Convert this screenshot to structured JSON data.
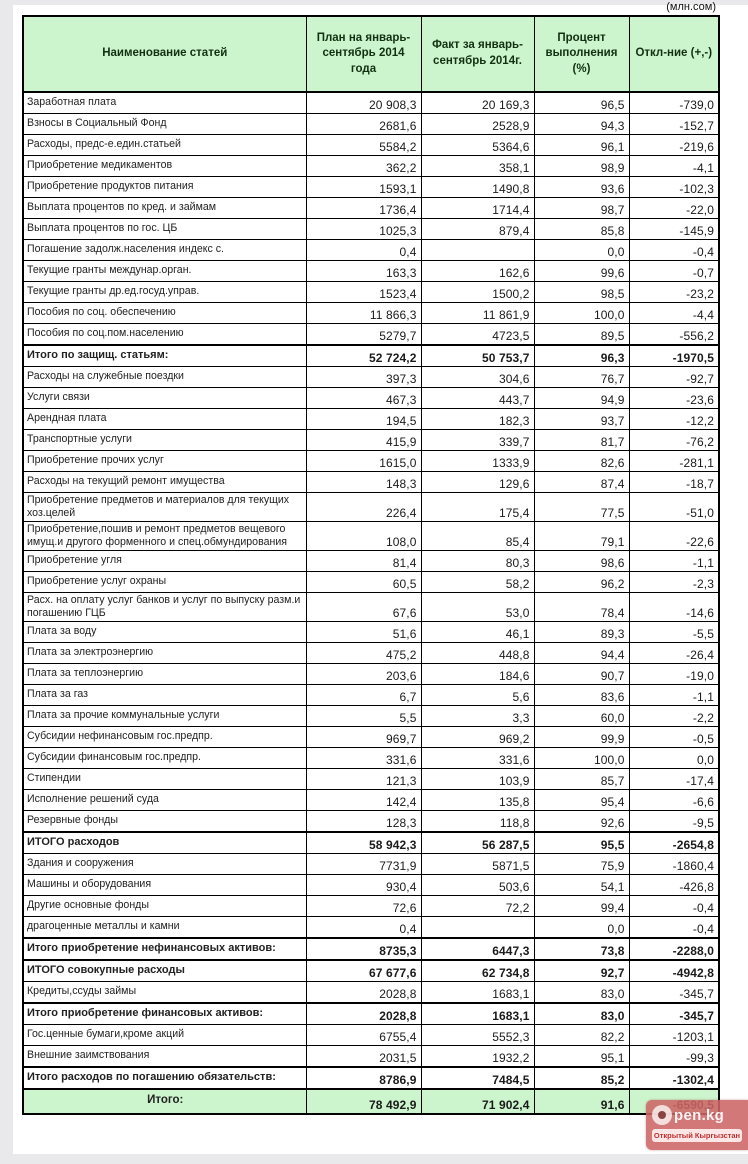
{
  "unit_note": "(млн.сом)",
  "table": {
    "headers": {
      "name": "Наименование статей",
      "plan": "План на январь-сентябрь 2014 года",
      "fact": "Факт за январь-сентябрь 2014г.",
      "percent": "Процент выполнения (%)",
      "deviation": "Откл-ние (+,-)"
    },
    "rows": [
      {
        "name": "Заработная плата",
        "plan": "20 908,3",
        "fact": "20 169,3",
        "percent": "96,5",
        "deviation": "-739,0",
        "type": "item"
      },
      {
        "name": "Взносы в Социальный Фонд",
        "plan": "2681,6",
        "fact": "2528,9",
        "percent": "94,3",
        "deviation": "-152,7",
        "type": "item"
      },
      {
        "name": "Расходы, предс-е.един.статьей",
        "plan": "5584,2",
        "fact": "5364,6",
        "percent": "96,1",
        "deviation": "-219,6",
        "type": "item"
      },
      {
        "name": "Приобретение медикаментов",
        "plan": "362,2",
        "fact": "358,1",
        "percent": "98,9",
        "deviation": "-4,1",
        "type": "item"
      },
      {
        "name": "Приобретение продуктов питания",
        "plan": "1593,1",
        "fact": "1490,8",
        "percent": "93,6",
        "deviation": "-102,3",
        "type": "item"
      },
      {
        "name": "Выплата процентов по кред. и займам",
        "plan": "1736,4",
        "fact": "1714,4",
        "percent": "98,7",
        "deviation": "-22,0",
        "type": "item"
      },
      {
        "name": "Выплата процентов по гос. ЦБ",
        "plan": "1025,3",
        "fact": "879,4",
        "percent": "85,8",
        "deviation": "-145,9",
        "type": "item"
      },
      {
        "name": "Погашение задолж.населения индекс с.",
        "plan": "0,4",
        "fact": "",
        "percent": "0,0",
        "deviation": "-0,4",
        "type": "item"
      },
      {
        "name": "Текущие гранты междунар.орган.",
        "plan": "163,3",
        "fact": "162,6",
        "percent": "99,6",
        "deviation": "-0,7",
        "type": "item"
      },
      {
        "name": "Текущие гранты др.ед.госуд.управ.",
        "plan": "1523,4",
        "fact": "1500,2",
        "percent": "98,5",
        "deviation": "-23,2",
        "type": "item"
      },
      {
        "name": "Пособия по соц. обеспечению",
        "plan": "11 866,3",
        "fact": "11 861,9",
        "percent": "100,0",
        "deviation": "-4,4",
        "type": "item"
      },
      {
        "name": "Пособия по соц.пом.населению",
        "plan": "5279,7",
        "fact": "4723,5",
        "percent": "89,5",
        "deviation": "-556,2",
        "type": "item"
      },
      {
        "name": "Итого по защищ. статьям:",
        "plan": "52 724,2",
        "fact": "50 753,7",
        "percent": "96,3",
        "deviation": "-1970,5",
        "type": "total"
      },
      {
        "name": "Расходы на служебные поездки",
        "plan": "397,3",
        "fact": "304,6",
        "percent": "76,7",
        "deviation": "-92,7",
        "type": "item"
      },
      {
        "name": "Услуги связи",
        "plan": "467,3",
        "fact": "443,7",
        "percent": "94,9",
        "deviation": "-23,6",
        "type": "item"
      },
      {
        "name": "Арендная плата",
        "plan": "194,5",
        "fact": "182,3",
        "percent": "93,7",
        "deviation": "-12,2",
        "type": "item"
      },
      {
        "name": "Транспортные услуги",
        "plan": "415,9",
        "fact": "339,7",
        "percent": "81,7",
        "deviation": "-76,2",
        "type": "item"
      },
      {
        "name": "Приобретение прочих услуг",
        "plan": "1615,0",
        "fact": "1333,9",
        "percent": "82,6",
        "deviation": "-281,1",
        "type": "item"
      },
      {
        "name": "Расходы на текущий ремонт имущества",
        "plan": "148,3",
        "fact": "129,6",
        "percent": "87,4",
        "deviation": "-18,7",
        "type": "item"
      },
      {
        "name": "Приобретение предметов и материалов для текущих хоз.целей",
        "plan": "226,4",
        "fact": "175,4",
        "percent": "77,5",
        "deviation": "-51,0",
        "type": "item"
      },
      {
        "name": "Приобретение,пошив и ремонт предметов вещевого имущ.и другого форменного и спец.обмундирования",
        "plan": "108,0",
        "fact": "85,4",
        "percent": "79,1",
        "deviation": "-22,6",
        "type": "item"
      },
      {
        "name": "Приобретение угля",
        "plan": "81,4",
        "fact": "80,3",
        "percent": "98,6",
        "deviation": "-1,1",
        "type": "item"
      },
      {
        "name": "Приобретение услуг охраны",
        "plan": "60,5",
        "fact": "58,2",
        "percent": "96,2",
        "deviation": "-2,3",
        "type": "item"
      },
      {
        "name": "Расх. на оплату услуг банков и услуг по выпуску разм.и погашению ГЦБ",
        "plan": "67,6",
        "fact": "53,0",
        "percent": "78,4",
        "deviation": "-14,6",
        "type": "item"
      },
      {
        "name": "Плата за воду",
        "plan": "51,6",
        "fact": "46,1",
        "percent": "89,3",
        "deviation": "-5,5",
        "type": "item"
      },
      {
        "name": "Плата за электроэнергию",
        "plan": "475,2",
        "fact": "448,8",
        "percent": "94,4",
        "deviation": "-26,4",
        "type": "item"
      },
      {
        "name": "Плата за теплоэнергию",
        "plan": "203,6",
        "fact": "184,6",
        "percent": "90,7",
        "deviation": "-19,0",
        "type": "item"
      },
      {
        "name": "Плата за газ",
        "plan": "6,7",
        "fact": "5,6",
        "percent": "83,6",
        "deviation": "-1,1",
        "type": "item"
      },
      {
        "name": "Плата за прочие коммунальные услуги",
        "plan": "5,5",
        "fact": "3,3",
        "percent": "60,0",
        "deviation": "-2,2",
        "type": "item"
      },
      {
        "name": "Субсидии нефинансовым гос.предпр.",
        "plan": "969,7",
        "fact": "969,2",
        "percent": "99,9",
        "deviation": "-0,5",
        "type": "item"
      },
      {
        "name": "Субсидии финансовым гос.предпр.",
        "plan": "331,6",
        "fact": "331,6",
        "percent": "100,0",
        "deviation": "0,0",
        "type": "item"
      },
      {
        "name": "Стипендии",
        "plan": "121,3",
        "fact": "103,9",
        "percent": "85,7",
        "deviation": "-17,4",
        "type": "item"
      },
      {
        "name": "Исполнение решений суда",
        "plan": "142,4",
        "fact": "135,8",
        "percent": "95,4",
        "deviation": "-6,6",
        "type": "item"
      },
      {
        "name": "Резервные фонды",
        "plan": "128,3",
        "fact": "118,8",
        "percent": "92,6",
        "deviation": "-9,5",
        "type": "item"
      },
      {
        "name": "ИТОГО расходов",
        "plan": "58 942,3",
        "fact": "56 287,5",
        "percent": "95,5",
        "deviation": "-2654,8",
        "type": "total"
      },
      {
        "name": "Здания и сооружения",
        "plan": "7731,9",
        "fact": "5871,5",
        "percent": "75,9",
        "deviation": "-1860,4",
        "type": "item"
      },
      {
        "name": "Машины и оборудования",
        "plan": "930,4",
        "fact": "503,6",
        "percent": "54,1",
        "deviation": "-426,8",
        "type": "item"
      },
      {
        "name": "Другие основные фонды",
        "plan": "72,6",
        "fact": "72,2",
        "percent": "99,4",
        "deviation": "-0,4",
        "type": "item"
      },
      {
        "name": "драгоценные металлы и камни",
        "plan": "0,4",
        "fact": "",
        "percent": "0,0",
        "deviation": "-0,4",
        "type": "item"
      },
      {
        "name": "Итого приобретение нефинансовых активов:",
        "plan": "8735,3",
        "fact": "6447,3",
        "percent": "73,8",
        "deviation": "-2288,0",
        "type": "total"
      },
      {
        "name": "ИТОГО совокупные расходы",
        "plan": "67 677,6",
        "fact": "62 734,8",
        "percent": "92,7",
        "deviation": "-4942,8",
        "type": "total"
      },
      {
        "name": "Кредиты,ссуды займы",
        "plan": "2028,8",
        "fact": "1683,1",
        "percent": "83,0",
        "deviation": "-345,7",
        "type": "item"
      },
      {
        "name": "Итого приобретение финансовых активов:",
        "plan": "2028,8",
        "fact": "1683,1",
        "percent": "83,0",
        "deviation": "-345,7",
        "type": "total"
      },
      {
        "name": "Гос.ценные бумаги,кроме акций",
        "plan": "6755,4",
        "fact": "5552,3",
        "percent": "82,2",
        "deviation": "-1203,1",
        "type": "item"
      },
      {
        "name": "Внешние заимствования",
        "plan": "2031,5",
        "fact": "1932,2",
        "percent": "95,1",
        "deviation": "-99,3",
        "type": "item"
      },
      {
        "name": "Итого расходов по погашению обязательств:",
        "plan": "8786,9",
        "fact": "7484,5",
        "percent": "85,2",
        "deviation": "-1302,4",
        "type": "total"
      },
      {
        "name": "Итого:",
        "plan": "78 492,9",
        "fact": "71 902,4",
        "percent": "91,6",
        "deviation": "-6590,5",
        "type": "grand"
      }
    ]
  },
  "watermark": {
    "site": "pen.kg",
    "caption": "Открытый Кыргызстан"
  },
  "colors": {
    "header_green": "#cdf5cd",
    "watermark_red": "#cd6565",
    "page_bg": "#e9e9eb"
  }
}
